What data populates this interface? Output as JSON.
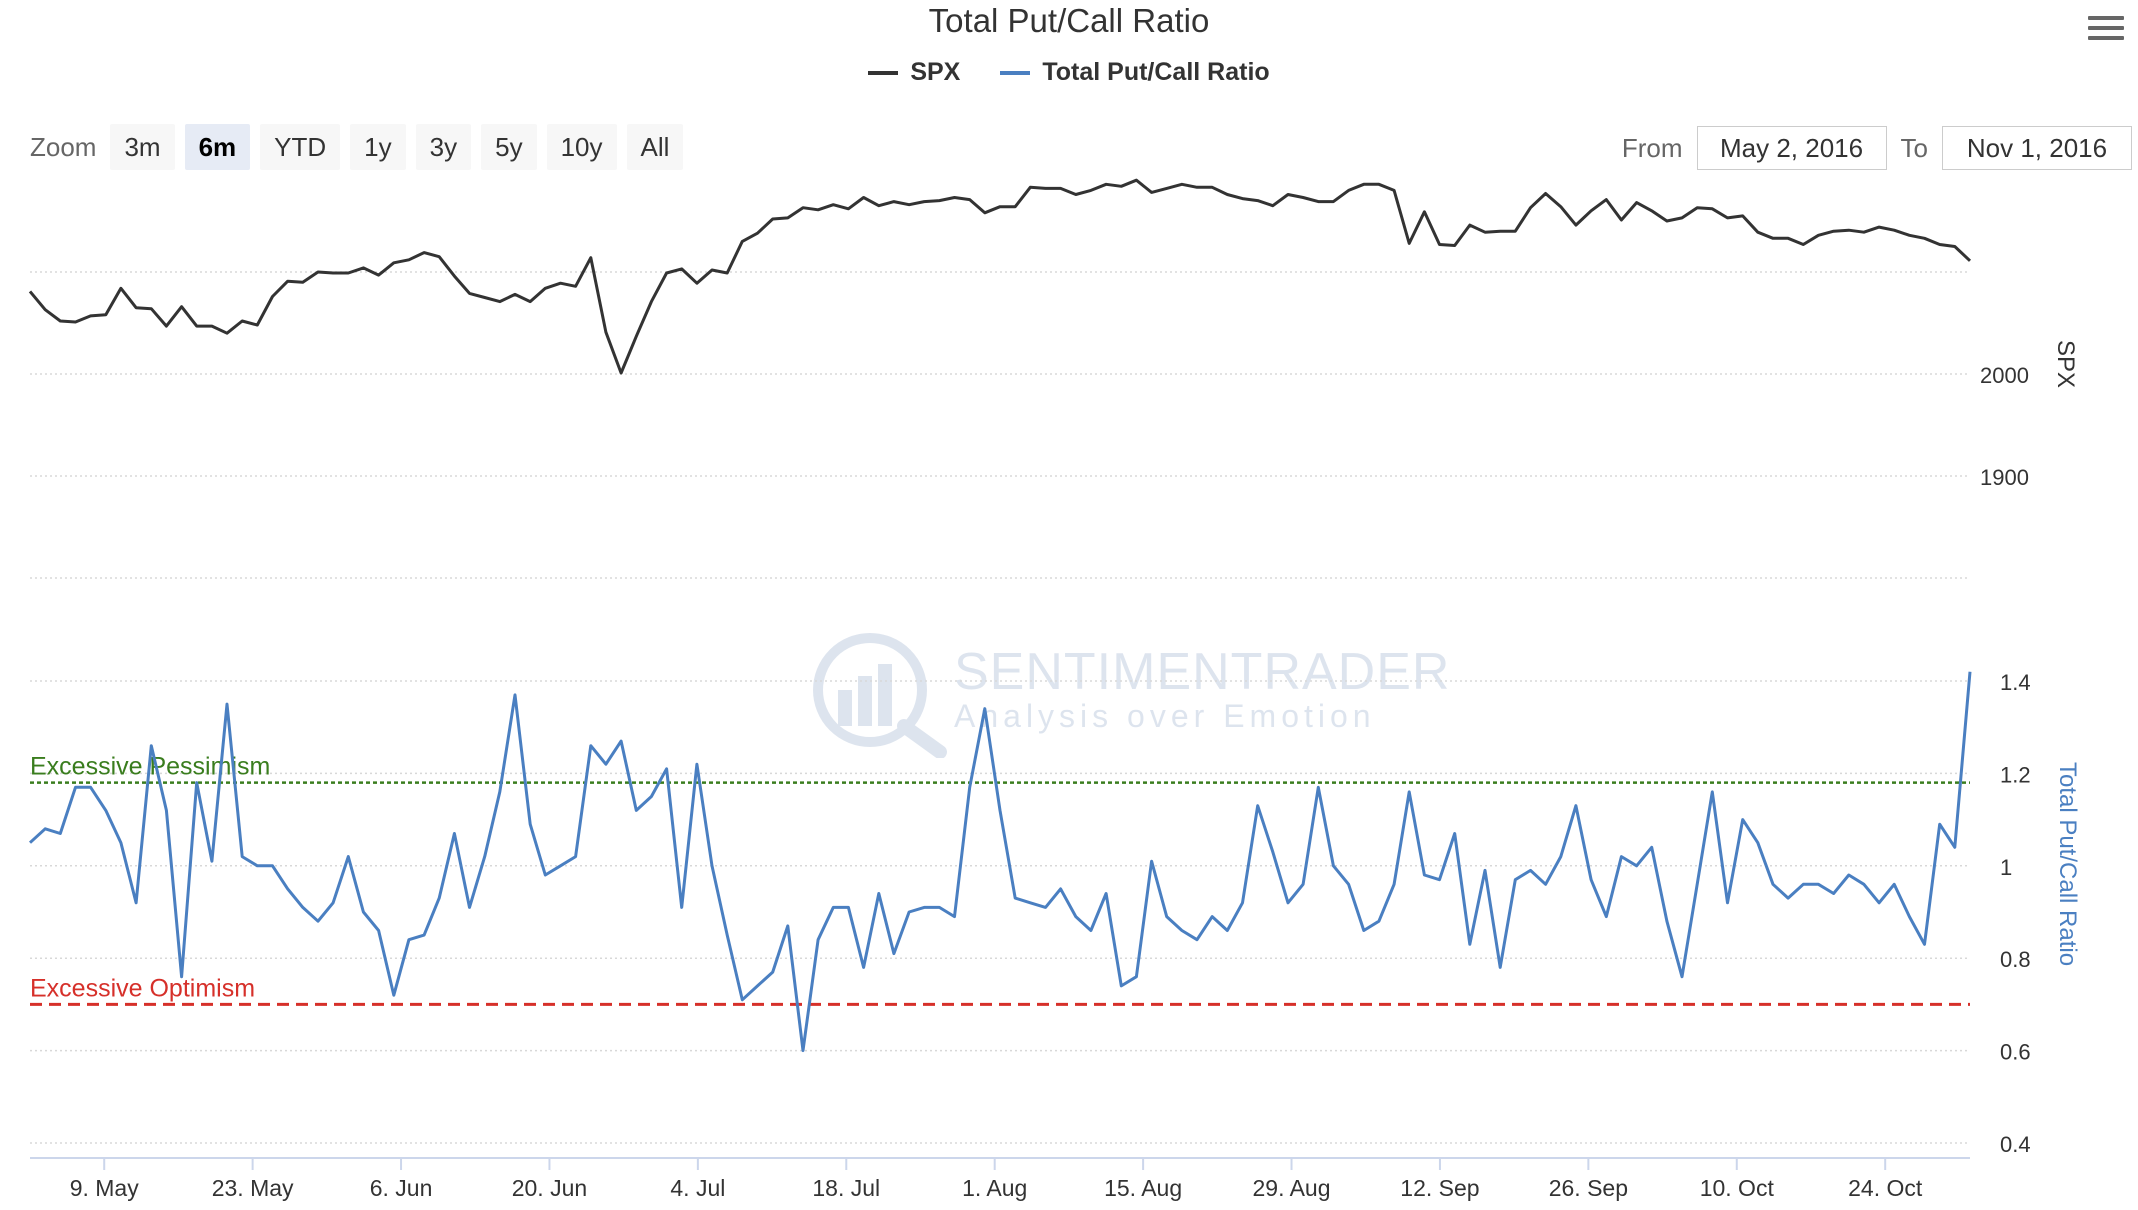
{
  "chart_data": {
    "type": "line",
    "title": "Total Put/Call Ratio",
    "legend": {
      "placement": "top-center",
      "items": [
        "SPX",
        "Total Put/Call Ratio"
      ]
    },
    "x_ticks": [
      "9. May",
      "23. May",
      "6. Jun",
      "20. Jun",
      "4. Jul",
      "18. Jul",
      "1. Aug",
      "15. Aug",
      "29. Aug",
      "12. Sep",
      "26. Sep",
      "10. Oct",
      "24. Oct"
    ],
    "x_range": [
      "2016-05-02",
      "2016-11-01"
    ],
    "spx_axis": {
      "label": "SPX",
      "ticks": [
        "1900",
        "2000"
      ],
      "range": [
        1800,
        2200
      ]
    },
    "pc_axis": {
      "label": "Total Put/Call Ratio",
      "ticks": [
        "0.4",
        "0.6",
        "0.8",
        "1",
        "1.2",
        "1.4"
      ],
      "range": [
        0.4,
        1.4
      ]
    },
    "grid": true,
    "series": [
      {
        "name": "SPX",
        "color": "#333333",
        "values": [
          2081,
          2063,
          2052,
          2051,
          2057,
          2058,
          2084,
          2065,
          2064,
          2047,
          2066,
          2047,
          2047,
          2040,
          2052,
          2048,
          2076,
          2091,
          2090,
          2100,
          2099,
          2099,
          2104,
          2097,
          2109,
          2112,
          2119,
          2115,
          2096,
          2079,
          2075,
          2071,
          2078,
          2071,
          2084,
          2089,
          2086,
          2114,
          2041,
          2001,
          2037,
          2071,
          2099,
          2103,
          2089,
          2102,
          2099,
          2130,
          2138,
          2152,
          2153,
          2163,
          2161,
          2166,
          2162,
          2173,
          2165,
          2169,
          2166,
          2169,
          2170,
          2173,
          2171,
          2158,
          2164,
          2164,
          2183,
          2182,
          2182,
          2176,
          2180,
          2186,
          2184,
          2190,
          2178,
          2182,
          2186,
          2183,
          2183,
          2176,
          2172,
          2170,
          2165,
          2176,
          2173,
          2169,
          2169,
          2180,
          2186,
          2186,
          2180,
          2128,
          2159,
          2127,
          2126,
          2146,
          2139,
          2140,
          2140,
          2163,
          2177,
          2164,
          2146,
          2160,
          2171,
          2151,
          2168,
          2160,
          2150,
          2153,
          2163,
          2162,
          2153,
          2155,
          2139,
          2133,
          2133,
          2127,
          2136,
          2140,
          2141,
          2139,
          2144,
          2141,
          2136,
          2133,
          2127,
          2125,
          2111
        ]
      },
      {
        "name": "Total Put/Call Ratio",
        "color": "#4a7fc1",
        "values": [
          1.05,
          1.08,
          1.07,
          1.17,
          1.17,
          1.12,
          1.05,
          0.92,
          1.26,
          1.12,
          0.76,
          1.18,
          1.01,
          1.35,
          1.02,
          1.0,
          1.0,
          0.95,
          0.91,
          0.88,
          0.92,
          1.02,
          0.9,
          0.86,
          0.72,
          0.84,
          0.85,
          0.93,
          1.07,
          0.91,
          1.02,
          1.16,
          1.37,
          1.09,
          0.98,
          1.0,
          1.02,
          1.26,
          1.22,
          1.27,
          1.12,
          1.15,
          1.21,
          0.91,
          1.22,
          1.0,
          0.85,
          0.71,
          0.74,
          0.77,
          0.87,
          0.6,
          0.84,
          0.91,
          0.91,
          0.78,
          0.94,
          0.81,
          0.9,
          0.91,
          0.91,
          0.89,
          1.17,
          1.34,
          1.12,
          0.93,
          0.92,
          0.91,
          0.95,
          0.89,
          0.86,
          0.94,
          0.74,
          0.76,
          1.01,
          0.89,
          0.86,
          0.84,
          0.89,
          0.86,
          0.92,
          1.13,
          1.03,
          0.92,
          0.96,
          1.17,
          1.0,
          0.96,
          0.86,
          0.88,
          0.96,
          1.16,
          0.98,
          0.97,
          1.07,
          0.83,
          0.99,
          0.78,
          0.97,
          0.99,
          0.96,
          1.02,
          1.13,
          0.97,
          0.89,
          1.02,
          1.0,
          1.04,
          0.88,
          0.76,
          0.96,
          1.16,
          0.92,
          1.1,
          1.05,
          0.96,
          0.93,
          0.96,
          0.96,
          0.94,
          0.98,
          0.96,
          0.92,
          0.96,
          0.89,
          0.83,
          1.09,
          1.04,
          1.42
        ]
      }
    ],
    "reference_lines": [
      {
        "label": "Excessive Pessimism",
        "value": 1.18,
        "color": "#3a7d1e"
      },
      {
        "label": "Excessive Optimism",
        "value": 0.7,
        "color": "#d6302a"
      }
    ]
  },
  "toolbar": {
    "zoom_label": "Zoom",
    "zoom_buttons": [
      "3m",
      "6m",
      "YTD",
      "1y",
      "3y",
      "5y",
      "10y",
      "All"
    ],
    "zoom_active": "6m",
    "from_label": "From",
    "from_value": "May 2, 2016",
    "to_label": "To",
    "to_value": "Nov 1, 2016"
  },
  "watermark": {
    "name": "SENTIMENTRADER",
    "tagline": "Analysis over Emotion"
  },
  "menu_icon": "hamburger-menu-icon"
}
